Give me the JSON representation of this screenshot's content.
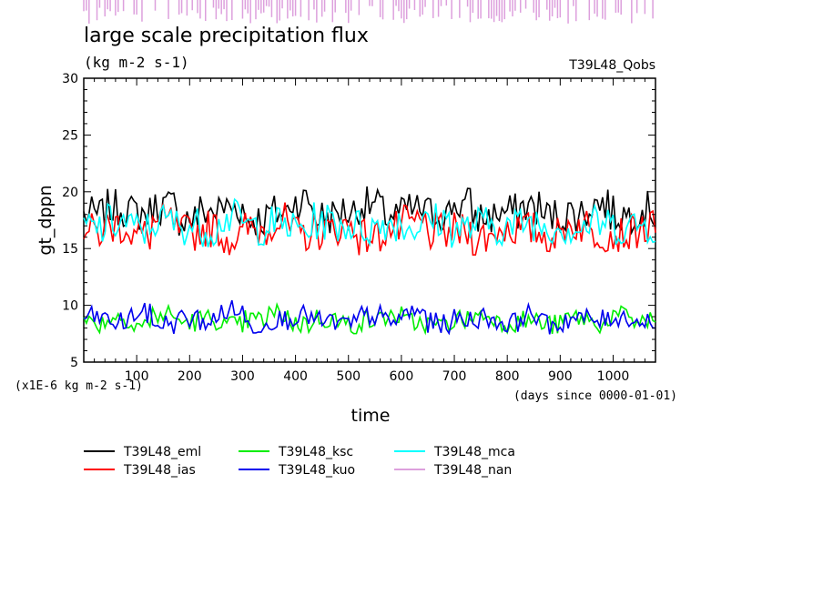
{
  "chart_data": {
    "type": "line",
    "title": "large scale precipitation flux",
    "units": "(kg m-2 s-1)",
    "run_label": "T39L48_Qobs",
    "xlabel": "time",
    "x_unit_note": "(days since 0000-01-01)",
    "ylabel": "gt_dppn",
    "y_scale_note": "(x1E-6 kg m-2 s-1)",
    "xlim": [
      0,
      1080
    ],
    "ylim": [
      5,
      30
    ],
    "x_ticks": [
      100,
      200,
      300,
      400,
      500,
      600,
      700,
      800,
      900,
      1000
    ],
    "y_ticks": [
      5,
      10,
      15,
      20,
      25,
      30
    ],
    "grid": false,
    "legend_position": "bottom",
    "series": [
      {
        "name": "T39L48_eml",
        "color": "#000000",
        "x_step": 5,
        "mean": 18.0,
        "values_sample": [
          17.8,
          19.6,
          18.4,
          20.1,
          17.2,
          18.9,
          19.8,
          16.9,
          18.5,
          21.4,
          17.6,
          18.8,
          20.3,
          17.9,
          19.1,
          18.2,
          20.5,
          17.4,
          18.6,
          19.9,
          17.7,
          18.3,
          20.8,
          18.0,
          19.2
        ]
      },
      {
        "name": "T39L48_ias",
        "color": "#ff0000",
        "x_step": 5,
        "mean": 16.6,
        "values_sample": [
          16.2,
          17.8,
          15.4,
          18.6,
          16.0,
          17.1,
          14.8,
          16.9,
          18.9,
          15.6,
          16.4,
          17.5,
          15.1,
          16.8,
          18.2,
          15.9,
          16.3,
          14.9,
          17.2,
          16.6,
          15.3,
          18.0,
          16.1,
          15.7,
          16.9
        ]
      },
      {
        "name": "T39L48_ksc",
        "color": "#00ee00",
        "x_step": 5,
        "mean": 8.6,
        "values_sample": [
          8.2,
          9.6,
          7.8,
          10.2,
          8.5,
          9.1,
          7.4,
          8.9,
          10.4,
          8.0,
          9.3,
          7.9,
          8.7,
          9.9,
          8.3,
          7.6,
          9.0,
          10.1,
          8.4,
          8.8,
          7.7,
          9.4,
          8.1,
          9.7,
          8.6
        ]
      },
      {
        "name": "T39L48_kuo",
        "color": "#0000ee",
        "x_step": 5,
        "mean": 8.7,
        "values_sample": [
          9.4,
          8.1,
          10.3,
          7.8,
          9.0,
          8.4,
          11.2,
          7.5,
          8.9,
          9.7,
          8.2,
          7.6,
          9.8,
          8.5,
          10.6,
          7.9,
          8.8,
          9.3,
          8.0,
          10.1,
          7.7,
          9.1,
          8.6,
          9.5,
          8.3
        ]
      },
      {
        "name": "T39L48_mca",
        "color": "#00ffff",
        "x_step": 5,
        "mean": 17.0,
        "values_sample": [
          16.5,
          17.8,
          16.1,
          18.2,
          17.0,
          16.4,
          19.0,
          16.8,
          17.5,
          16.2,
          18.1,
          17.3,
          16.6,
          17.9,
          16.9,
          18.4,
          16.3,
          17.4,
          16.7,
          18.0,
          17.1,
          16.5,
          17.6,
          16.8,
          17.2
        ]
      },
      {
        "name": "T39L48_nan",
        "color": "#dda0dd",
        "x_step": 5,
        "note": "plotted outside the frame as spikes above the title"
      }
    ]
  }
}
